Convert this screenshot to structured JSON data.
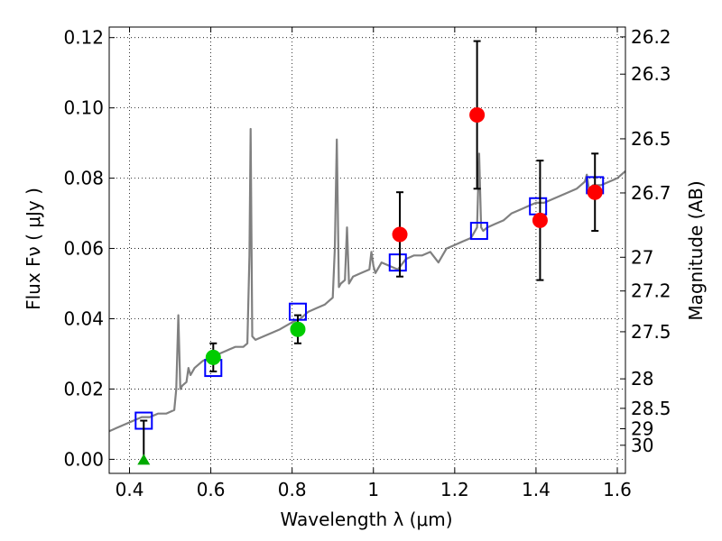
{
  "chart_data": {
    "type": "scatter",
    "title": "",
    "xlabel": "Wavelength  λ (μm)",
    "ylabel": "Flux  Fν  ( μJy )",
    "ylabel_right": "Magnitude (AB)",
    "xlim": [
      0.35,
      1.62
    ],
    "ylim": [
      -0.004,
      0.123
    ],
    "grid": true,
    "x_ticks": [
      0.4,
      0.6,
      0.8,
      1.0,
      1.2,
      1.4,
      1.6
    ],
    "x_tick_labels": [
      "0.4",
      "0.6",
      "0.8",
      "1",
      "1.2",
      "1.4",
      "1.6"
    ],
    "y_ticks": [
      0.0,
      0.02,
      0.04,
      0.06,
      0.08,
      0.1,
      0.12
    ],
    "y_tick_labels": [
      "0.00",
      "0.02",
      "0.04",
      "0.06",
      "0.08",
      "0.10",
      "0.12"
    ],
    "right_ticks": [
      {
        "label": "26.2",
        "flux": 0.1202
      },
      {
        "label": "26.3",
        "flux": 0.1096
      },
      {
        "label": "26.5",
        "flux": 0.0912
      },
      {
        "label": "26.7",
        "flux": 0.0758
      },
      {
        "label": "27",
        "flux": 0.0575
      },
      {
        "label": "27.2",
        "flux": 0.0479
      },
      {
        "label": "27.5",
        "flux": 0.0363
      },
      {
        "label": "28",
        "flux": 0.0229
      },
      {
        "label": "28.5",
        "flux": 0.0145
      },
      {
        "label": "29",
        "flux": 0.0087
      },
      {
        "label": "30",
        "flux": 0.004
      }
    ],
    "series": [
      {
        "kind": "spectrum",
        "color": "#808080",
        "x": [
          0.35,
          0.37,
          0.39,
          0.41,
          0.43,
          0.45,
          0.47,
          0.49,
          0.51,
          0.515,
          0.52,
          0.525,
          0.53,
          0.54,
          0.545,
          0.55,
          0.56,
          0.57,
          0.58,
          0.6,
          0.62,
          0.64,
          0.66,
          0.68,
          0.69,
          0.695,
          0.698,
          0.702,
          0.71,
          0.73,
          0.75,
          0.77,
          0.8,
          0.82,
          0.84,
          0.86,
          0.88,
          0.9,
          0.905,
          0.91,
          0.915,
          0.92,
          0.93,
          0.935,
          0.94,
          0.95,
          0.97,
          0.99,
          0.995,
          1.0,
          1.005,
          1.02,
          1.04,
          1.06,
          1.08,
          1.1,
          1.12,
          1.14,
          1.16,
          1.18,
          1.2,
          1.22,
          1.24,
          1.255,
          1.26,
          1.265,
          1.27,
          1.28,
          1.3,
          1.32,
          1.34,
          1.36,
          1.38,
          1.4,
          1.42,
          1.44,
          1.46,
          1.48,
          1.5,
          1.52,
          1.525,
          1.53,
          1.54,
          1.56,
          1.58,
          1.6,
          1.62
        ],
        "y": [
          0.008,
          0.009,
          0.01,
          0.011,
          0.012,
          0.012,
          0.013,
          0.013,
          0.014,
          0.02,
          0.041,
          0.02,
          0.021,
          0.022,
          0.026,
          0.024,
          0.026,
          0.027,
          0.028,
          0.029,
          0.03,
          0.031,
          0.032,
          0.032,
          0.033,
          0.058,
          0.094,
          0.035,
          0.034,
          0.035,
          0.036,
          0.037,
          0.039,
          0.04,
          0.042,
          0.043,
          0.044,
          0.046,
          0.06,
          0.091,
          0.049,
          0.05,
          0.051,
          0.066,
          0.05,
          0.052,
          0.053,
          0.054,
          0.059,
          0.055,
          0.053,
          0.056,
          0.055,
          0.054,
          0.057,
          0.058,
          0.058,
          0.059,
          0.056,
          0.06,
          0.061,
          0.062,
          0.063,
          0.066,
          0.087,
          0.066,
          0.065,
          0.066,
          0.067,
          0.068,
          0.07,
          0.071,
          0.072,
          0.073,
          0.073,
          0.074,
          0.075,
          0.076,
          0.077,
          0.079,
          0.081,
          0.077,
          0.078,
          0.078,
          0.079,
          0.08,
          0.082
        ]
      },
      {
        "kind": "model-photometry",
        "marker": "square-open",
        "color": "#0000ff",
        "x": [
          0.435,
          0.606,
          0.814,
          1.06,
          1.26,
          1.405,
          1.545
        ],
        "y": [
          0.011,
          0.026,
          0.042,
          0.056,
          0.065,
          0.072,
          0.078
        ]
      },
      {
        "kind": "observed-hst-optical",
        "marker": "circle",
        "color": "#00cc00",
        "x": [
          0.606,
          0.814
        ],
        "y": [
          0.029,
          0.037
        ],
        "yerr": [
          0.004,
          0.004
        ]
      },
      {
        "kind": "observed-hst-ir",
        "marker": "circle",
        "color": "#ff0000",
        "x": [
          1.065,
          1.255,
          1.41,
          1.545
        ],
        "y": [
          0.064,
          0.098,
          0.068,
          0.076
        ],
        "yerr": [
          0.012,
          0.021,
          0.017,
          0.011
        ]
      },
      {
        "kind": "upper-limit",
        "marker": "triangle",
        "color": "#00aa00",
        "x": [
          0.435
        ],
        "y": [
          0.0
        ],
        "yerr_up": [
          0.011
        ]
      }
    ]
  }
}
